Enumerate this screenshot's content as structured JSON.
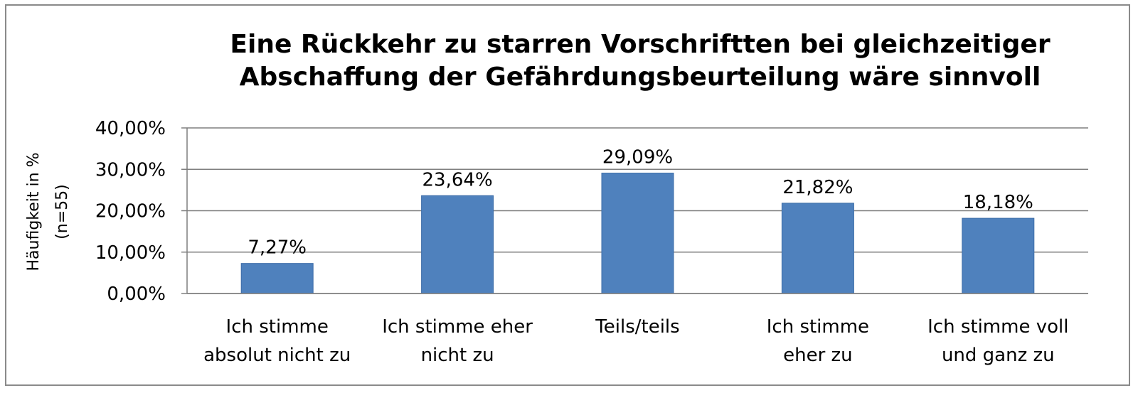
{
  "chart_data": {
    "type": "bar",
    "title": "Eine Rückkehr zu starren Vorschriftten bei gleichzeitiger Abschaffung der Gefährdungsbeurteilung wäre sinnvoll",
    "title_lines": [
      "Eine Rückkehr zu starren Vorschriftten bei gleichzeitiger",
      "Abschaffung der Gefährdungsbeurteilung wäre sinnvoll"
    ],
    "ylabel_lines": [
      "Häufigkeit in %",
      "(n=55)"
    ],
    "xlabel": "",
    "categories": [
      [
        "Ich stimme",
        "absolut nicht zu"
      ],
      [
        "Ich stimme eher",
        "nicht zu"
      ],
      [
        "Teils/teils"
      ],
      [
        "Ich stimme",
        "eher zu"
      ],
      [
        "Ich stimme voll",
        "und ganz zu"
      ]
    ],
    "values": [
      7.27,
      23.64,
      29.09,
      21.82,
      18.18
    ],
    "data_labels": [
      "7,27%",
      "23,64%",
      "29,09%",
      "21,82%",
      "18,18%"
    ],
    "yticks": [
      "0,00%",
      "10,00%",
      "20,00%",
      "30,00%",
      "40,00%"
    ],
    "ylim": [
      0,
      40
    ],
    "grid": true,
    "bar_color": "#4f81bd",
    "bar_edge_color": "#3d6da8",
    "grid_color": "#7f7f7f"
  }
}
